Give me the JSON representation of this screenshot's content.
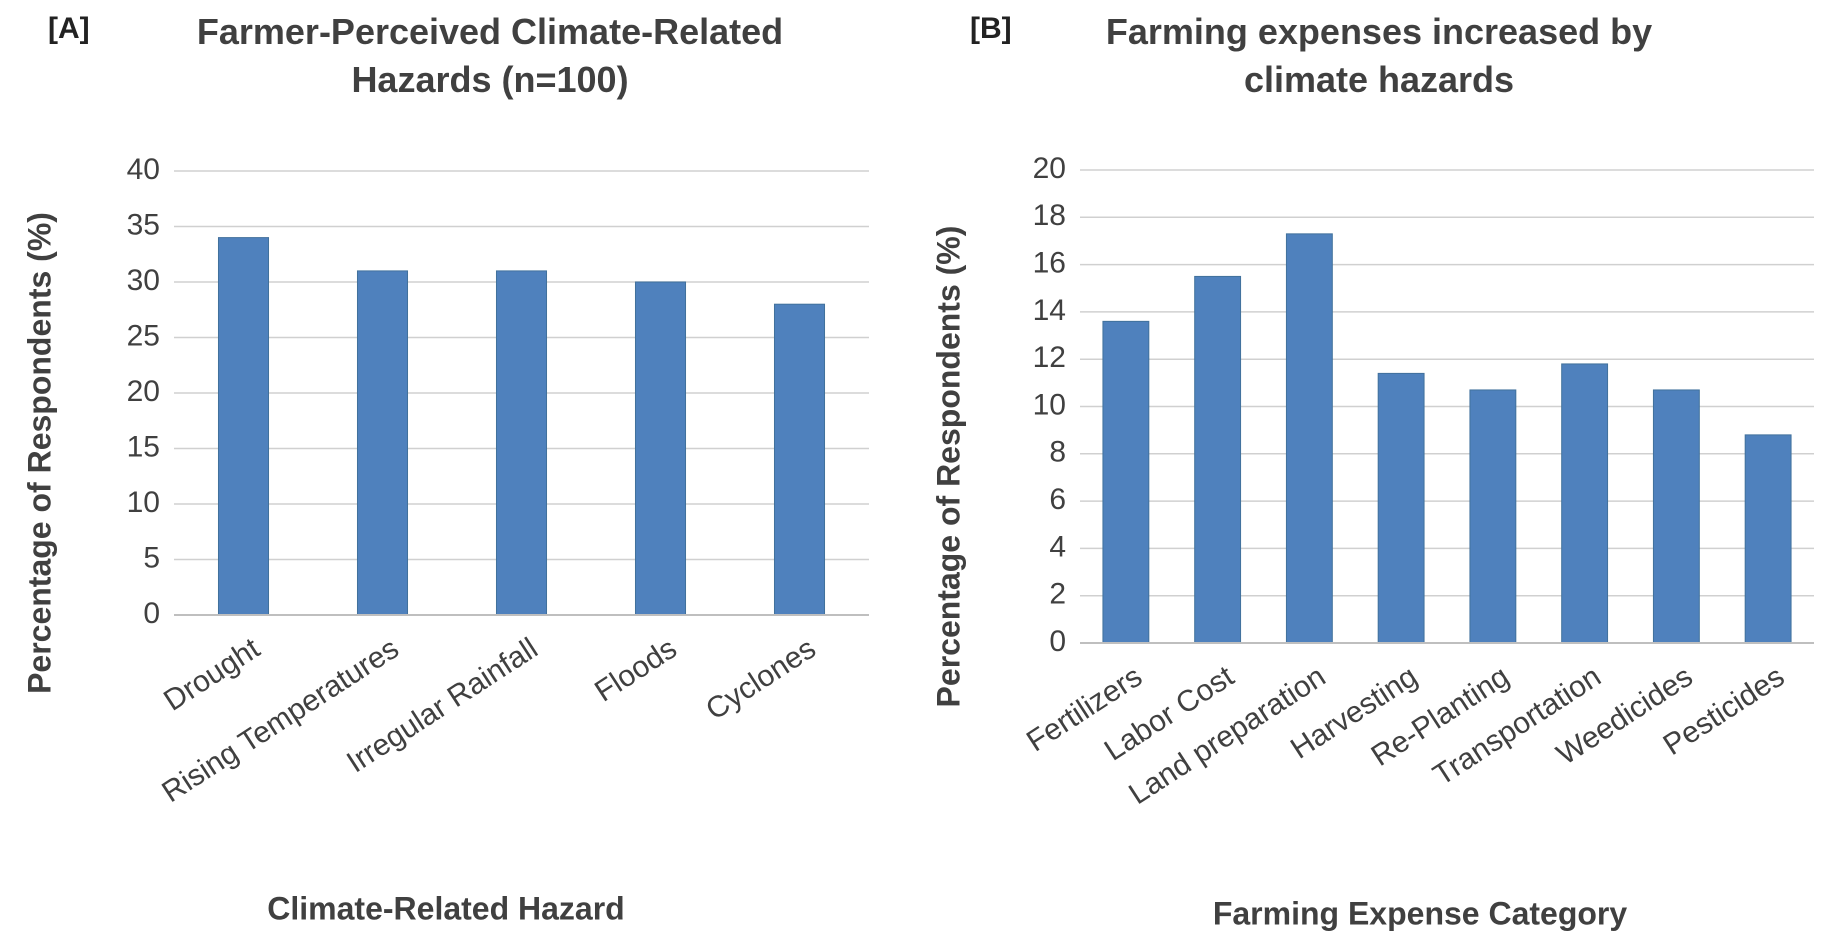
{
  "chart_data": [
    {
      "type": "bar",
      "panel_label": "[A]",
      "title": "Farmer-Perceived Climate-Related Hazards (n=100)",
      "x_label": "Climate-Related Hazard",
      "y_label": "Percentage of Respondents (%)",
      "categories": [
        "Drought",
        "Rising Temperatures",
        "Irregular Rainfall",
        "Floods",
        "Cyclones"
      ],
      "values": [
        34,
        31,
        31,
        30,
        28
      ],
      "color": "#4f81bd",
      "ylim": [
        0,
        40
      ],
      "yticks": [
        0,
        5,
        10,
        15,
        20,
        25,
        30,
        35,
        40
      ],
      "grid": true
    },
    {
      "type": "bar",
      "panel_label": "[B]",
      "title": "Farming expenses increased by climate hazards",
      "x_label": "Farming Expense Category",
      "y_label": "Percentage of Respondents (%)",
      "categories": [
        "Fertilizers",
        "Labor Cost",
        "Land preparation",
        "Harvesting",
        "Re-Planting",
        "Transportation",
        "Weedicides",
        "Pesticides"
      ],
      "values": [
        13.6,
        15.5,
        17.3,
        11.4,
        10.7,
        11.8,
        10.7,
        8.8
      ],
      "color": "#4f81bd",
      "ylim": [
        0,
        20
      ],
      "yticks": [
        0,
        2,
        4,
        6,
        8,
        10,
        12,
        14,
        16,
        18,
        20
      ],
      "grid": true
    }
  ]
}
